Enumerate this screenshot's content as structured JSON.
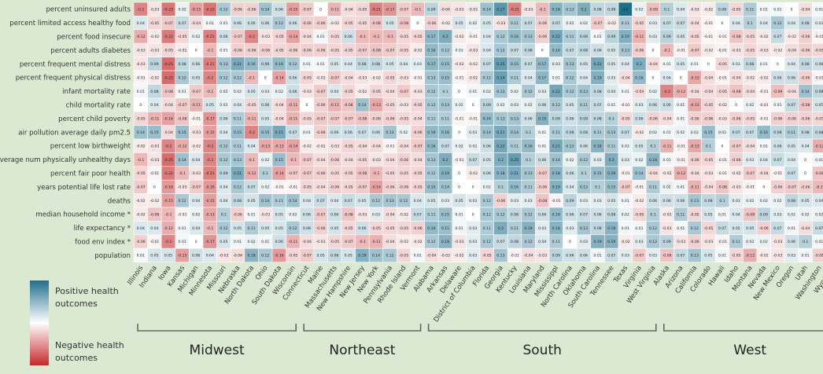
{
  "chart_data": {
    "type": "heatmap",
    "rows": [
      "percent uninsured adults",
      "percent limited access healthy food",
      "percent food insecure",
      "percent adults diabetes",
      "percent frequent mental distress",
      "percent frequent physical distress",
      "infant mortality rate",
      "child mortality rate",
      "percent child poverty",
      "air pollution average daily pm2.5",
      "percent low birthweight",
      "average num physically unhealthy days",
      "percent fair poor health",
      "years potential life lost rate",
      "deaths",
      "median household income *",
      "life expectancy *",
      "food env index *",
      "population"
    ],
    "columns": [
      "Illinois",
      "Indiana",
      "Iowa",
      "Kansas",
      "Michigan",
      "Minnesota",
      "Missouri",
      "Nebraska",
      "North Dakota",
      "Ohio",
      "South Dakota",
      "Wisconsin",
      "Connecticut",
      "Maine",
      "Massachusetts",
      "New Hampshire",
      "New Jersey",
      "New York",
      "Pennsylvania",
      "Rhode Island",
      "Vermont",
      "Alabama",
      "Arkansas",
      "Delaware",
      "District of Columbia",
      "Florida",
      "Georgia",
      "Kentucky",
      "Louisiana",
      "Maryland",
      "Mississippi",
      "North Carolina",
      "Oklahoma",
      "South Carolina",
      "Tennessee",
      "Texas",
      "Virginia",
      "West Virginia",
      "Alaska",
      "Arizona",
      "California",
      "Colorado",
      "Hawaii",
      "Idaho",
      "Montana",
      "Nevada",
      "New Mexico",
      "Oregon",
      "Utah",
      "Washington",
      "Wyoming"
    ],
    "regions": [
      {
        "name": "Midwest",
        "start": 0,
        "end": 11
      },
      {
        "name": "Northeast",
        "start": 12,
        "end": 20
      },
      {
        "name": "South",
        "start": 21,
        "end": 37
      },
      {
        "name": "West",
        "start": 38,
        "end": 50
      }
    ],
    "values": [
      [
        -0.2,
        -0.03,
        -0.23,
        0.02,
        -0.15,
        -0.23,
        0.12,
        -0.06,
        -0.06,
        0.14,
        0.06,
        -0.15,
        -0.07,
        0,
        -0.11,
        -0.04,
        -0.05,
        -0.21,
        -0.17,
        -0.07,
        -0.1,
        0.09,
        -0.04,
        -0.03,
        -0.02,
        0.14,
        0.27,
        -0.21,
        -0.03,
        -0.1,
        0.18,
        0.13,
        0.2,
        0.08,
        0.08,
        0.4,
        0.02,
        -0.09,
        0.1,
        0.04,
        -0.03,
        -0.02,
        0.09,
        -0.05,
        0.11,
        0.01,
        0.01,
        0,
        -0.04,
        0.01,
        0.04
      ],
      [
        0.04,
        -0.05,
        -0.07,
        0.07,
        -0.04,
        0.01,
        0.01,
        0.06,
        0.06,
        0.06,
        0.12,
        0.06,
        -0.06,
        -0.06,
        -0.02,
        -0.05,
        -0.05,
        -0.08,
        0.05,
        -0.08,
        0,
        -0.06,
        -0.02,
        0.05,
        0.02,
        0.05,
        -0.03,
        0.11,
        0.07,
        -0.06,
        0.07,
        0.02,
        0.02,
        -0.07,
        -0.02,
        0.11,
        -0.05,
        0.03,
        0.07,
        0.07,
        -0.04,
        -0.01,
        0,
        0.04,
        0.1,
        0.04,
        0.12,
        0.04,
        0.08,
        0.03,
        0
      ],
      [
        -0.12,
        -0.02,
        -0.22,
        -0.05,
        0.02,
        -0.21,
        0.06,
        -0.07,
        -0.2,
        -0.03,
        -0.05,
        -0.14,
        -0.04,
        0.01,
        -0.05,
        0.06,
        -0.1,
        -0.1,
        -0.1,
        -0.05,
        -0.05,
        0.17,
        0.2,
        -0.02,
        -0.01,
        0.04,
        0.12,
        0.16,
        0.13,
        -0.06,
        0.22,
        0.11,
        0.09,
        0.01,
        0.09,
        0.19,
        -0.11,
        0.03,
        0.09,
        0.05,
        -0.05,
        -0.01,
        -0.01,
        -0.08,
        -0.05,
        -0.02,
        0.07,
        -0.02,
        -0.06,
        -0.01,
        -0.07
      ],
      [
        -0.03,
        -0.03,
        -0.05,
        -0.02,
        0,
        -0.1,
        0.01,
        -0.06,
        -0.06,
        -0.06,
        -0.05,
        -0.06,
        -0.06,
        -0.06,
        -0.05,
        -0.05,
        -0.07,
        -0.08,
        -0.07,
        -0.05,
        -0.02,
        0.16,
        0.12,
        0.01,
        -0.03,
        0.04,
        0.12,
        0.07,
        0.08,
        0,
        0.16,
        0.07,
        0.08,
        0.06,
        0.05,
        0.13,
        -0.06,
        0,
        -0.1,
        -0.01,
        -0.07,
        -0.02,
        -0.01,
        -0.03,
        -0.05,
        -0.03,
        -0.02,
        -0.04,
        -0.06,
        -0.05,
        -0.07
      ],
      [
        -0.03,
        0.09,
        -0.25,
        0.08,
        0.06,
        -0.21,
        0.13,
        0.21,
        0.16,
        0.09,
        0.16,
        0.12,
        0.01,
        0.01,
        0.05,
        0.04,
        0.08,
        0.08,
        0.05,
        0.04,
        0.03,
        0.17,
        0.15,
        -0.02,
        -0.02,
        0.07,
        0.25,
        0.15,
        0.07,
        0.17,
        0.03,
        0.13,
        0.05,
        0.22,
        0.05,
        0.04,
        0.2,
        -0.04,
        0.01,
        0.05,
        0.01,
        0,
        -0.05,
        0.03,
        0.08,
        0.01,
        0,
        0.04,
        0.08,
        0.06,
        0.06
      ],
      [
        -0.01,
        -0.02,
        -0.25,
        0.12,
        0.05,
        -0.2,
        0.12,
        0.12,
        -0.1,
        0,
        -0.14,
        0.06,
        -0.05,
        -0.02,
        -0.07,
        -0.04,
        -0.03,
        -0.02,
        -0.05,
        -0.03,
        -0.01,
        0.13,
        0.15,
        -0.01,
        -0.02,
        0.12,
        0.24,
        0.11,
        0.04,
        0.17,
        0.01,
        0.12,
        0.04,
        0.19,
        0.03,
        -0.04,
        0.16,
        0,
        0.04,
        0,
        -0.13,
        -0.04,
        -0.01,
        -0.04,
        -0.02,
        -0.02,
        0.06,
        0.06,
        -0.06,
        -0.01,
        -0.07
      ],
      [
        0.01,
        0.08,
        -0.08,
        0.01,
        -0.07,
        -0.1,
        0.02,
        0.02,
        0.05,
        0.03,
        0.02,
        0.06,
        -0.03,
        -0.07,
        0.04,
        -0.05,
        -0.02,
        -0.05,
        -0.04,
        -0.07,
        -0.03,
        0.12,
        0.1,
        0,
        0.01,
        0.02,
        0.13,
        0.02,
        0.12,
        0.03,
        0.22,
        0.12,
        0.13,
        0.08,
        0.04,
        0.01,
        -0.04,
        0.02,
        -0.2,
        -0.12,
        -0.04,
        -0.04,
        -0.05,
        -0.08,
        -0.04,
        -0.01,
        -0.09,
        -0.04,
        0.14,
        0.08,
        0.12
      ],
      [
        0,
        0.04,
        -0.04,
        -0.07,
        -0.11,
        0.05,
        0.02,
        0.04,
        -0.05,
        0.06,
        -0.04,
        -0.11,
        0,
        -0.06,
        -0.11,
        -0.08,
        0.14,
        -0.13,
        -0.05,
        -0.03,
        -0.05,
        0.12,
        0.13,
        0.02,
        0,
        0.09,
        0.02,
        0.03,
        0.02,
        0.06,
        0.12,
        0.05,
        0.11,
        0.07,
        0.01,
        -0.01,
        0.03,
        0.06,
        0.06,
        0.01,
        -0.13,
        -0.05,
        -0.02,
        0,
        0.02,
        -0.01,
        0.01,
        0.07,
        -0.08,
        0.05,
        0.08
      ],
      [
        -0.05,
        -0.11,
        -0.14,
        -0.08,
        -0.01,
        -0.17,
        0.06,
        0.11,
        -0.11,
        0.05,
        -0.04,
        -0.11,
        -0.05,
        -0.07,
        -0.07,
        -0.07,
        -0.08,
        -0.06,
        -0.06,
        -0.05,
        -0.04,
        0.11,
        0.11,
        -0.01,
        -0.01,
        0.16,
        0.13,
        0.13,
        0.06,
        0.19,
        0.09,
        0.06,
        0.09,
        0.08,
        0.1,
        -0.05,
        0.06,
        -0.06,
        -0.04,
        0.01,
        -0.06,
        -0.06,
        -0.03,
        -0.06,
        -0.05,
        -0.01,
        -0.06,
        -0.06,
        -0.06,
        -0.05,
        -0.08
      ],
      [
        0.14,
        0.15,
        -0.04,
        0.15,
        -0.03,
        -0.15,
        0.04,
        0.15,
        -0.2,
        0.15,
        0.21,
        0.07,
        0.01,
        -0.06,
        0.06,
        0.06,
        0.07,
        0.06,
        0.13,
        0.02,
        -0.06,
        0.16,
        0.16,
        0,
        0.03,
        0.14,
        0.21,
        0.14,
        0.1,
        0.01,
        0.11,
        0.08,
        0.08,
        0.11,
        0.13,
        0.07,
        -0.02,
        0.02,
        0.01,
        0.02,
        0.02,
        0.15,
        0.02,
        0.07,
        0.07,
        0.16,
        0.08,
        0.11,
        0.08,
        0.08,
        0.08
      ],
      [
        -0.02,
        -0.03,
        -0.2,
        -0.12,
        -0.02,
        -0.2,
        0.12,
        0.11,
        0.04,
        -0.13,
        -0.13,
        -0.14,
        -0.02,
        -0.02,
        -0.03,
        -0.05,
        -0.04,
        -0.04,
        -0.01,
        -0.04,
        -0.07,
        0.16,
        0.07,
        0.02,
        0.02,
        0.06,
        0.22,
        0.11,
        0.16,
        0.01,
        0.21,
        0.13,
        0.06,
        0.18,
        0.11,
        0.02,
        0.05,
        0.1,
        -0.11,
        -0.01,
        -0.13,
        0.1,
        0,
        -0.07,
        -0.04,
        0.01,
        0.06,
        0.05,
        0.04,
        -0.12,
        0.02
      ],
      [
        -0.1,
        -0.03,
        -0.25,
        0.14,
        0.04,
        -0.2,
        0.12,
        0.13,
        -0.1,
        0.02,
        0.15,
        -0.1,
        -0.07,
        -0.04,
        -0.06,
        -0.04,
        -0.05,
        -0.03,
        -0.04,
        -0.06,
        -0.04,
        0.13,
        0.2,
        -0.01,
        0.07,
        0.05,
        0.2,
        0.25,
        0.1,
        0.06,
        0.14,
        0.02,
        0.12,
        0.03,
        0.2,
        0.03,
        0.02,
        0.18,
        0.01,
        -0.01,
        -0.06,
        -0.05,
        -0.01,
        -0.06,
        0.03,
        0.04,
        0.07,
        0.04,
        0,
        0.01,
        0
      ],
      [
        -0.05,
        -0.01,
        -0.22,
        -0.1,
        -0.03,
        -0.21,
        0.09,
        0.21,
        -0.12,
        0.1,
        -0.14,
        -0.07,
        -0.07,
        -0.06,
        -0.05,
        -0.05,
        -0.08,
        -0.1,
        -0.05,
        -0.05,
        -0.05,
        0.12,
        0.19,
        0,
        -0.02,
        0.06,
        0.18,
        0.21,
        0.13,
        -0.07,
        0.18,
        0.06,
        0.1,
        0.15,
        0.19,
        -0.01,
        0.14,
        -0.04,
        -0.02,
        -0.12,
        -0.04,
        -0.03,
        -0.01,
        -0.02,
        -0.07,
        -0.04,
        -0.01,
        0.07,
        0,
        -0.08,
        0.08
      ],
      [
        -0.07,
        0,
        -0.16,
        -0.03,
        -0.07,
        -0.16,
        0.04,
        0.12,
        0.07,
        0.02,
        -0.01,
        -0.01,
        -0.05,
        -0.04,
        -0.06,
        -0.05,
        -0.07,
        -0.14,
        -0.06,
        -0.06,
        -0.05,
        0.15,
        0.14,
        0,
        0,
        0.02,
        0.1,
        0.16,
        0.11,
        -0.06,
        0.19,
        0.04,
        0.13,
        0.1,
        0.15,
        -0.07,
        -0.01,
        0.11,
        0.02,
        0.01,
        -0.11,
        -0.04,
        -0.08,
        -0.03,
        -0.01,
        0,
        -0.06,
        -0.07,
        -0.06,
        -0.1,
        -0.05
      ],
      [
        -0.02,
        -0.02,
        -0.15,
        0.12,
        0.04,
        -0.15,
        0.04,
        0.08,
        0.05,
        0.14,
        0.11,
        0.14,
        0.04,
        0.07,
        0.04,
        0.07,
        0.05,
        0.12,
        0.13,
        0.12,
        0.04,
        0.05,
        0.03,
        0.05,
        0.03,
        0.12,
        -0.06,
        0.03,
        0.03,
        -0.08,
        -0.01,
        0.09,
        0.03,
        0.03,
        0.05,
        0.01,
        -0.02,
        0.06,
        0.06,
        0.06,
        0.13,
        0.08,
        0.1,
        0.03,
        0.02,
        0.02,
        0.02,
        0.08,
        0.05,
        0.04,
        0.05
      ],
      [
        -0.02,
        -0.08,
        -0.1,
        -0.01,
        0.02,
        -0.13,
        0.1,
        -0.06,
        0.01,
        -0.03,
        0.05,
        0.02,
        0.06,
        -0.07,
        0.06,
        -0.08,
        -0.03,
        0.03,
        -0.04,
        -0.02,
        0.07,
        0.11,
        0.15,
        0.01,
        0,
        0.12,
        0.12,
        0.08,
        0.12,
        0.06,
        0.16,
        0.06,
        0.07,
        0.06,
        0.08,
        0.02,
        -0.05,
        0.1,
        -0.02,
        0.11,
        -0.05,
        0.05,
        0.01,
        0.04,
        -0.08,
        0.09,
        0.03,
        0.02,
        0.02,
        0.02,
        0.04
      ],
      [
        0.04,
        0.04,
        -0.12,
        0.01,
        0.04,
        -0.1,
        0.12,
        0.05,
        0.11,
        0.05,
        0.05,
        0.12,
        0.06,
        -0.06,
        0.05,
        -0.05,
        0.06,
        -0.05,
        -0.05,
        -0.05,
        -0.06,
        0.16,
        0.15,
        0.01,
        0.03,
        0.11,
        0.2,
        0.11,
        0.19,
        0.03,
        0.18,
        0.03,
        0.13,
        0.08,
        0.18,
        0.01,
        0.01,
        0.12,
        -0.03,
        0.01,
        0.12,
        -0.05,
        0.07,
        0.05,
        0.05,
        -0.06,
        0.07,
        0.01,
        -0.04,
        0.07,
        0.03
      ],
      [
        -0.06,
        -0.01,
        -0.2,
        0.01,
        0,
        -0.17,
        0.05,
        0.01,
        0.02,
        0.01,
        0.06,
        -0.11,
        -0.04,
        -0.03,
        -0.05,
        -0.07,
        -0.1,
        -0.11,
        -0.04,
        -0.02,
        -0.02,
        0.12,
        0.18,
        -0.03,
        0.03,
        0.12,
        0.07,
        0.08,
        0.12,
        0.04,
        0.11,
        0,
        0.03,
        0.19,
        0.19,
        -0.02,
        0.03,
        0.12,
        0.09,
        -0.03,
        -0.06,
        -0.03,
        -0.01,
        0.11,
        0.02,
        0.02,
        -0.03,
        0.06,
        0.1,
        0.01,
        0.03
      ],
      [
        0.01,
        0.05,
        0.05,
        -0.15,
        0.06,
        0.04,
        -0.03,
        -0.04,
        0.18,
        0.12,
        -0.16,
        -0.05,
        -0.07,
        0.05,
        0.08,
        0.05,
        0.19,
        0.14,
        0.12,
        -0.05,
        0.01,
        -0.04,
        -0.03,
        -0.02,
        0.03,
        -0.05,
        0.13,
        -0.01,
        -0.04,
        -0.03,
        0.09,
        0.06,
        0.06,
        0.01,
        0.07,
        0.03,
        -0.07,
        0.03,
        -0.08,
        0.07,
        0.13,
        0.05,
        0.01,
        -0.05,
        -0.12,
        -0.02,
        -0.03,
        0.03,
        0.01,
        -0.06,
        0.03
      ]
    ],
    "color_scale": {
      "min": -0.4,
      "max": 0.4,
      "negative_color": "#c62828",
      "neutral_color": "#ffffff",
      "positive_color": "#1f6f8b"
    },
    "legend": {
      "top_label": "Positive health outcomes",
      "bottom_label": "Negative health outcomes"
    }
  }
}
